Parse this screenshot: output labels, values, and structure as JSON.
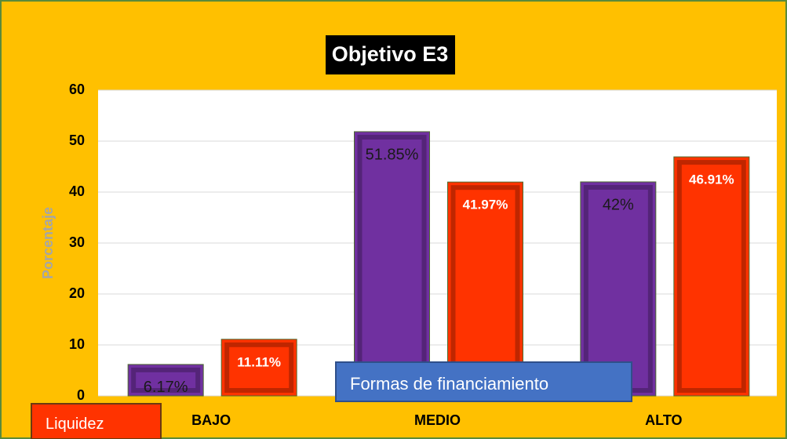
{
  "chart_data": {
    "type": "bar",
    "title": "Objetivo E3",
    "y_label": "Porcentaje",
    "categories": [
      "BAJO",
      "MEDIO",
      "ALTO"
    ],
    "series": [
      {
        "name": "Formas de financiamiento",
        "color": "#7030a0",
        "values": [
          6.17,
          51.85,
          42
        ],
        "value_labels": [
          "6.17%",
          "51.85%",
          "42%"
        ]
      },
      {
        "name": "Liquidez",
        "color": "#ff3300",
        "values": [
          11.11,
          41.97,
          46.91
        ],
        "value_labels": [
          "11.11%",
          "41.97%",
          "46.91%"
        ]
      }
    ],
    "ylim": [
      0,
      60
    ],
    "yticks": [
      0,
      10,
      20,
      30,
      40,
      50,
      60
    ],
    "grid": true
  }
}
